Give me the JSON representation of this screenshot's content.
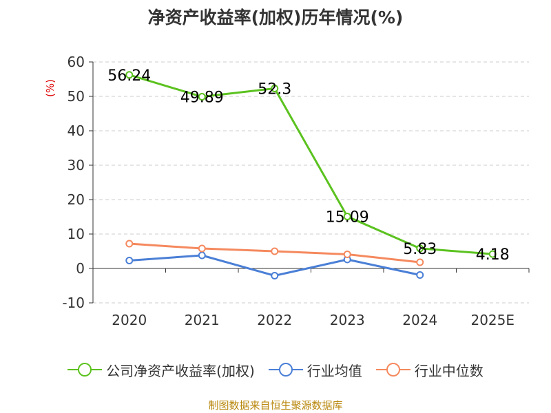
{
  "chart_data": {
    "type": "line",
    "title": "净资产收益率(加权)历年情况(%)",
    "ylabel": "(%)",
    "xlabel": "",
    "categories": [
      "2020",
      "2021",
      "2022",
      "2023",
      "2024",
      "2025E"
    ],
    "ylim": [
      -10,
      60
    ],
    "yticks": [
      -10,
      0,
      10,
      20,
      30,
      40,
      50,
      60
    ],
    "grid": true,
    "legend_position": "bottom",
    "series": [
      {
        "name": "公司净资产收益率(加权)",
        "color": "#5bc21f",
        "values": [
          56.24,
          49.89,
          52.3,
          15.09,
          5.83,
          4.18
        ],
        "labels": [
          "56.24",
          "49.89",
          "52.3",
          "15.09",
          "5.83",
          "4.18"
        ]
      },
      {
        "name": "行业均值",
        "color": "#4a7fd6",
        "values": [
          2.3,
          3.8,
          -2.1,
          2.6,
          -1.9,
          null
        ]
      },
      {
        "name": "行业中位数",
        "color": "#f5895e",
        "values": [
          7.2,
          5.8,
          5.0,
          4.1,
          1.8,
          null
        ]
      }
    ]
  },
  "source": "制图数据来自恒生聚源数据库"
}
